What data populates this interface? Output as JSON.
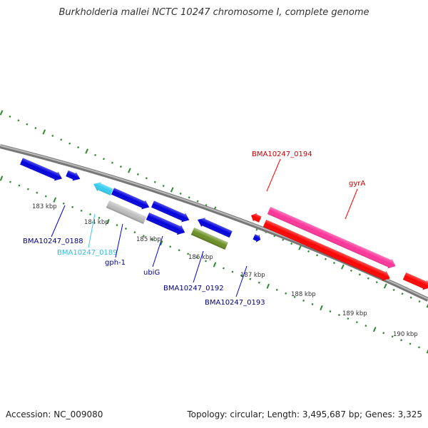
{
  "title": "Burkholderia mallei NCTC 10247 chromosome I, complete genome",
  "footer": {
    "accession": "Accession: NC_009080",
    "summary": "Topology: circular; Length: 3,495,687 bp; Genes: 3,325"
  },
  "colors": {
    "backbone": "#777777",
    "tick": "#2e8b2e",
    "blue": "#0000dd",
    "cyan": "#33ccee",
    "gray": "#bbbbbb",
    "olive": "#6b8e23",
    "red": "#ff0000",
    "pink": "#ff3399",
    "label_blue": "#000080",
    "label_cyan": "#33bbdd",
    "label_red": "#cc0000"
  },
  "kbp_ticks": [
    "183 kbp",
    "184 kbp",
    "185 kbp",
    "186 kbp",
    "187 kbp",
    "188 kbp",
    "189 kbp",
    "190 kbp"
  ],
  "gene_labels": [
    {
      "name": "BMA10247_0188",
      "color": "blue"
    },
    {
      "name": "BMA10247_0189",
      "color": "cyan"
    },
    {
      "name": "gph-1",
      "color": "blue"
    },
    {
      "name": "ubiG",
      "color": "blue"
    },
    {
      "name": "BMA10247_0192",
      "color": "blue"
    },
    {
      "name": "BMA10247_0193",
      "color": "blue"
    },
    {
      "name": "BMA10247_0194",
      "color": "red"
    },
    {
      "name": "gyrA",
      "color": "red"
    }
  ]
}
